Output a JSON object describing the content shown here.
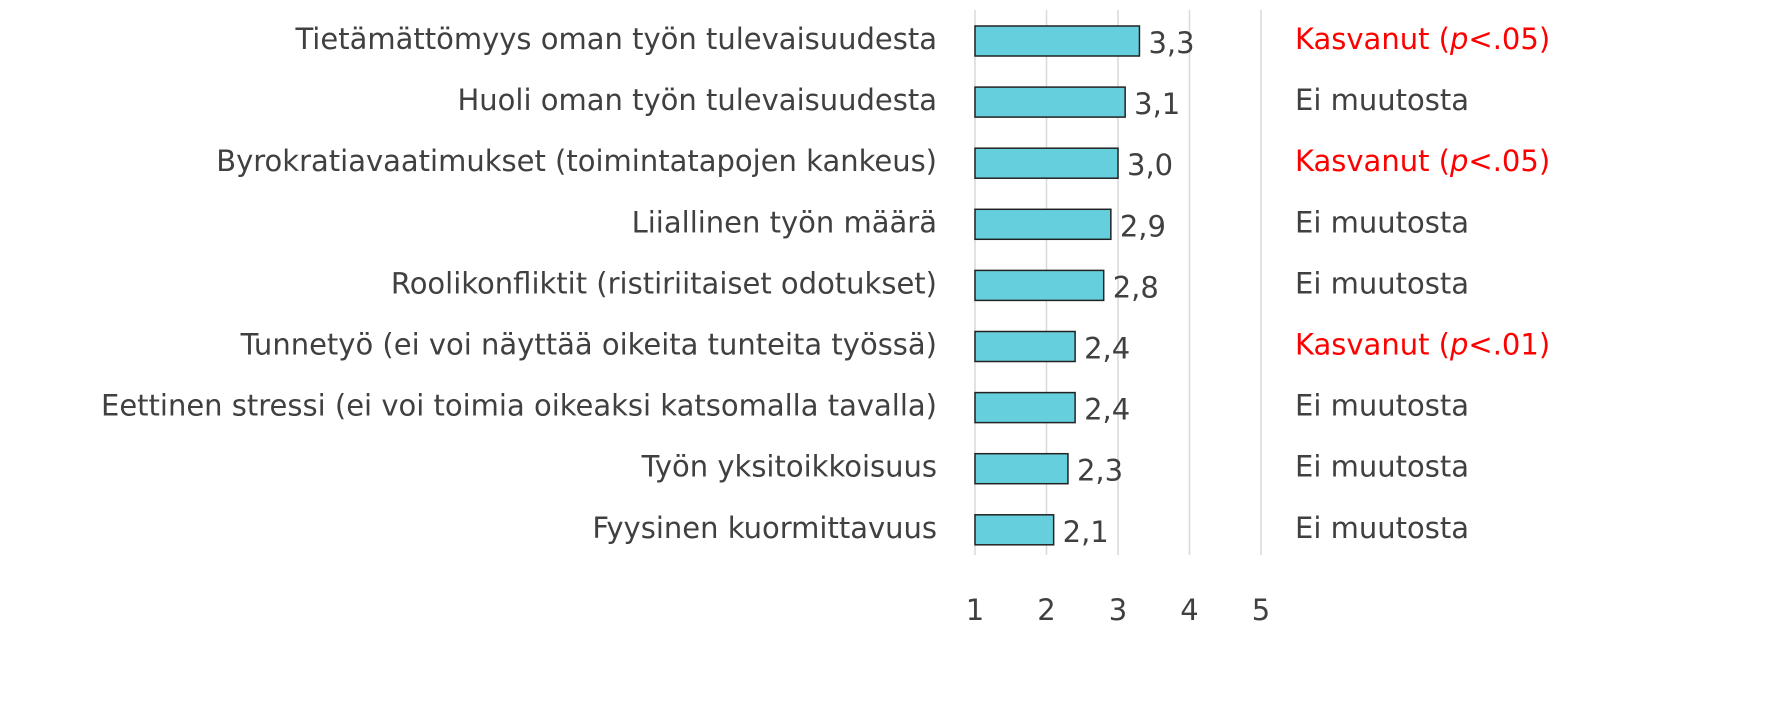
{
  "chart_data": {
    "type": "bar",
    "orientation": "horizontal",
    "categories": [
      "Tietämättömyys oman työn tulevaisuudesta",
      "Huoli oman työn tulevaisuudesta",
      "Byrokratiavaatimukset (toimintatapojen kankeus)",
      "Liiallinen työn määrä",
      "Roolikonfliktit (ristiriitaiset odotukset)",
      "Tunnetyö (ei voi näyttää oikeita tunteita työssä)",
      "Eettinen stressi (ei voi toimia oikeaksi katsomalla tavalla)",
      "Työn yksitoikkoisuus",
      "Fyysinen kuormittavuus"
    ],
    "values": [
      3.3,
      3.1,
      3.0,
      2.9,
      2.8,
      2.4,
      2.4,
      2.3,
      2.1
    ],
    "value_labels": [
      "3,3",
      "3,1",
      "3,0",
      "2,9",
      "2,8",
      "2,4",
      "2,4",
      "2,3",
      "2,1"
    ],
    "color": "#66cfde",
    "xlim": [
      1,
      5
    ],
    "xticks": [
      1,
      2,
      3,
      4,
      5
    ],
    "grid": true,
    "annotations": [
      {
        "prefix": "Kasvanut (",
        "italic": "p",
        "suffix": "<.05)",
        "color": "#ff0000"
      },
      {
        "text": "Ei muutosta",
        "color": "#404040"
      },
      {
        "prefix": "Kasvanut (",
        "italic": "p",
        "suffix": "<.05)",
        "color": "#ff0000"
      },
      {
        "text": "Ei muutosta",
        "color": "#404040"
      },
      {
        "text": "Ei muutosta",
        "color": "#404040"
      },
      {
        "prefix": "Kasvanut (",
        "italic": "p",
        "suffix": "<.01)",
        "color": "#ff0000"
      },
      {
        "text": "Ei muutosta",
        "color": "#404040"
      },
      {
        "text": "Ei muutosta",
        "color": "#404040"
      },
      {
        "text": "Ei muutosta",
        "color": "#404040"
      }
    ]
  }
}
